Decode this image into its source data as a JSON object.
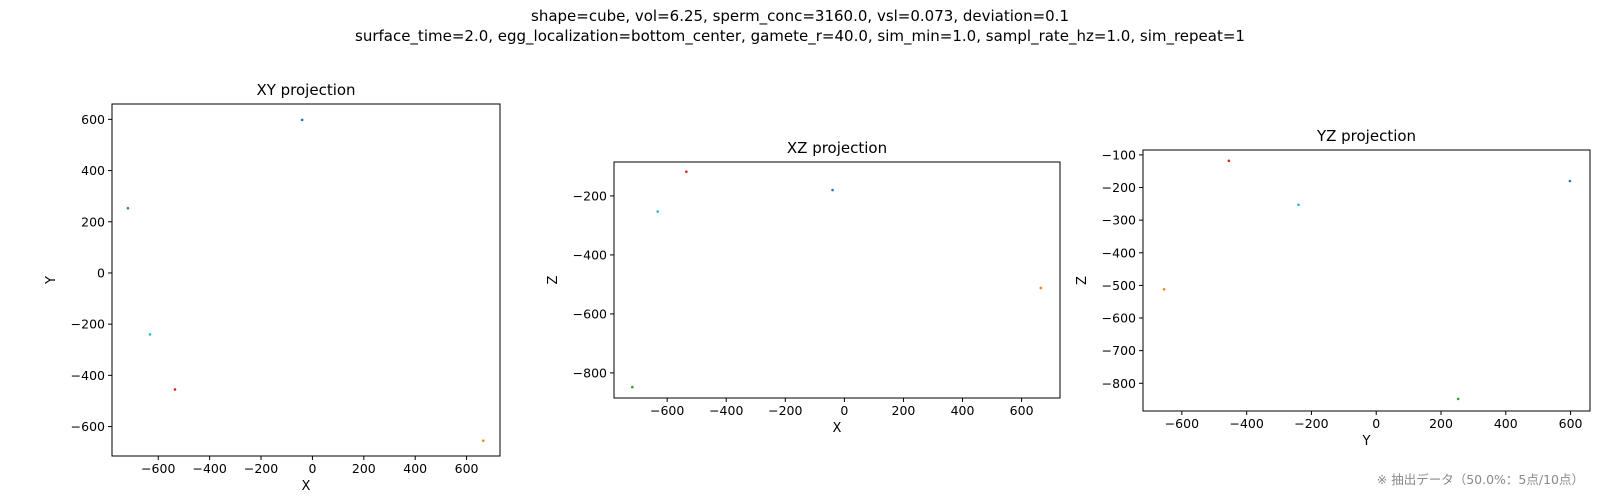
{
  "suptitle": {
    "line1": "shape=cube, vol=6.25, sperm_conc=3160.0, vsl=0.073, deviation=0.1",
    "line2": "surface_time=2.0, egg_localization=bottom_center, gamete_r=40.0, sim_min=1.0, sampl_rate_hz=1.0, sim_repeat=1"
  },
  "footnote": "※ 抽出データ（50.0%：5点/10点）",
  "colors": [
    "#1f77b4",
    "#ff7f0e",
    "#2ca02c",
    "#d62728",
    "#17becf"
  ],
  "points3d": [
    {
      "x": -40,
      "y": 598,
      "z": -180,
      "color": "#1f77b4"
    },
    {
      "x": 665,
      "y": -655,
      "z": -512,
      "color": "#ff7f0e"
    },
    {
      "x": -718,
      "y": 253,
      "z": -848,
      "color": "#2ca02c"
    },
    {
      "x": -535,
      "y": -455,
      "z": -118,
      "color": "#d62728"
    },
    {
      "x": -632,
      "y": -240,
      "z": -253,
      "color": "#17becf"
    }
  ],
  "chart_data": [
    {
      "type": "scatter",
      "title": "XY projection",
      "xlabel": "X",
      "ylabel": "Y",
      "xlim": [
        -780,
        730
      ],
      "ylim": [
        -715,
        660
      ],
      "xticks": [
        -600,
        -400,
        -200,
        0,
        200,
        400,
        600
      ],
      "yticks": [
        -600,
        -400,
        -200,
        0,
        200,
        400,
        600
      ],
      "x": [
        -40,
        665,
        -718,
        -535,
        -632
      ],
      "y": [
        598,
        -655,
        253,
        -455,
        -240
      ]
    },
    {
      "type": "scatter",
      "title": "XZ projection",
      "xlabel": "X",
      "ylabel": "Z",
      "xlim": [
        -780,
        730
      ],
      "ylim": [
        -885,
        -85
      ],
      "xticks": [
        -600,
        -400,
        -200,
        0,
        200,
        400,
        600
      ],
      "yticks": [
        -800,
        -600,
        -400,
        -200
      ],
      "x": [
        -40,
        665,
        -718,
        -535,
        -632
      ],
      "y": [
        -180,
        -512,
        -848,
        -118,
        -253
      ]
    },
    {
      "type": "scatter",
      "title": "YZ projection",
      "xlabel": "Y",
      "ylabel": "Z",
      "xlim": [
        -720,
        660
      ],
      "ylim": [
        -885,
        -85
      ],
      "xticks": [
        -600,
        -400,
        -200,
        0,
        200,
        400,
        600
      ],
      "yticks": [
        -800,
        -700,
        -600,
        -500,
        -400,
        -300,
        -200,
        -100
      ],
      "x": [
        598,
        -655,
        253,
        -455,
        -240
      ],
      "y": [
        -180,
        -512,
        -848,
        -118,
        -253
      ]
    }
  ]
}
